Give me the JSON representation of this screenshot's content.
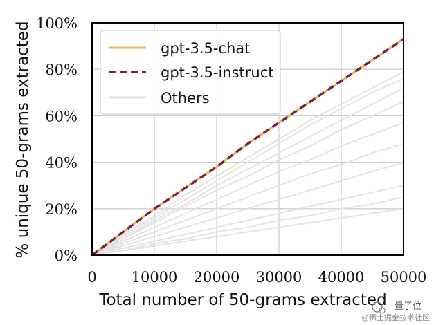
{
  "chart_data": {
    "type": "line",
    "xlabel": "Total number of 50-grams extracted",
    "ylabel": "% unique 50-grams extracted",
    "xlim": [
      0,
      50000
    ],
    "ylim": [
      0,
      100
    ],
    "x_ticks": [
      0,
      10000,
      20000,
      30000,
      40000,
      50000
    ],
    "x_tick_labels": [
      "0",
      "10000",
      "20000",
      "30000",
      "40000",
      "50000"
    ],
    "y_ticks": [
      0,
      20,
      40,
      60,
      80,
      100
    ],
    "y_tick_labels": [
      "0%",
      "20%",
      "40%",
      "60%",
      "80%",
      "100%"
    ],
    "grid": true,
    "legend_position": "top-left",
    "x": [
      0,
      5000,
      10000,
      15000,
      20000,
      25000,
      30000,
      35000,
      40000,
      45000,
      50000
    ],
    "series": [
      {
        "name": "gpt-3.5-chat",
        "color": "#e8b84a",
        "style": "solid",
        "values": [
          0,
          10,
          20,
          29,
          38,
          48,
          57,
          66,
          75,
          84,
          93
        ]
      },
      {
        "name": "gpt-3.5-instruct",
        "color": "#7b1f3e",
        "style": "dashed",
        "values": [
          0,
          10,
          20,
          29,
          38,
          48,
          57,
          66,
          75,
          84,
          93
        ]
      },
      {
        "name": "Others",
        "color": "#e3e3e3",
        "style": "solid",
        "values": null
      }
    ],
    "others": [
      [
        0,
        9,
        17,
        26,
        34,
        42,
        50,
        58,
        65,
        72,
        79
      ],
      [
        0,
        8,
        16,
        24,
        32,
        40,
        48,
        56,
        63,
        70,
        76
      ],
      [
        0,
        7,
        15,
        22,
        30,
        37,
        44,
        51,
        58,
        65,
        72
      ],
      [
        0,
        7,
        14,
        21,
        28,
        34,
        41,
        47,
        54,
        60,
        66
      ],
      [
        0,
        6,
        12,
        18,
        24,
        30,
        36,
        41,
        47,
        52,
        57
      ],
      [
        0,
        5,
        10,
        15,
        20,
        25,
        30,
        35,
        39,
        44,
        48
      ],
      [
        0,
        4,
        8,
        12,
        16,
        20,
        24,
        28,
        32,
        36,
        40
      ],
      [
        0,
        3,
        6,
        9,
        12,
        15,
        18,
        21,
        24,
        27,
        30
      ],
      [
        0,
        2,
        5,
        7,
        10,
        12,
        15,
        17,
        20,
        22,
        25
      ],
      [
        0,
        2,
        4,
        6,
        8,
        10,
        12,
        14,
        16,
        18,
        20
      ]
    ]
  },
  "watermark": {
    "title": "量子位",
    "subtitle": "@稀土掘金技术社区"
  }
}
